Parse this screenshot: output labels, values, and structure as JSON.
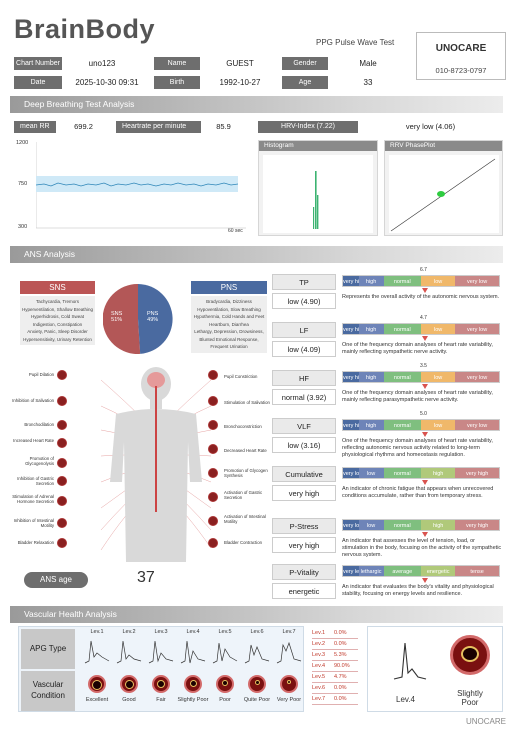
{
  "header": {
    "brand": "BrainBody",
    "subtitle": "PPG Pulse Wave Test",
    "company": "UNOCARE",
    "phone": "010-8723-0797"
  },
  "info": {
    "row1": [
      {
        "label": "Chart Number",
        "value": "uno123"
      },
      {
        "label": "Name",
        "value": "GUEST"
      },
      {
        "label": "Gender",
        "value": "Male"
      }
    ],
    "row2": [
      {
        "label": "Date",
        "value": "2025-10-30 09:31"
      },
      {
        "label": "Birth",
        "value": "1992-10-27"
      },
      {
        "label": "Age",
        "value": "33"
      }
    ]
  },
  "deep": {
    "title": "Deep Breathing Test Analysis",
    "mean_rr_label": "mean RR",
    "mean_rr": "699.2",
    "hr_label": "Heartrate per minute",
    "hr": "85.9",
    "y_ticks": [
      "1200",
      "750",
      "300"
    ],
    "x_unit": "60 sec",
    "hrv_label": "HRV-Index (7.22)",
    "hrv_value": "very low (4.06)",
    "histogram": "Histogram",
    "phaseplot": "RRV PhasePlot"
  },
  "ans": {
    "title": "ANS Analysis",
    "sns": "SNS",
    "pns": "PNS",
    "sns_pct": "SNS\n51%",
    "pns_pct": "PNS\n49%",
    "sns_list": [
      "Tachycardia, Tremors",
      "Hyperventilation, Shallow Breathing",
      "Hyperhidrosis, Cold Sweat",
      "Indigestion, Constipation",
      "Anxiety, Panic, Sleep Disorder",
      "Hypersensitivity, Urinary Retention"
    ],
    "pns_list": [
      "Bradycardia, Dizziness",
      "Hypoventilation, Slow Breathing",
      "Hypothermia, Cold Hands and Feet",
      "Heartburn, Diarrhea",
      "Lethargy, Depression, Drowsiness, Blunted Emotional Response, Frequent Urination"
    ],
    "left_organs": [
      "Pupil Dilation",
      "Inhibition of Salivation",
      "Bronchodilation",
      "Increased Heart Rate",
      "Promotion of Glycogenolysis",
      "Inhibition of Gastric Secretion",
      "Stimulation of Adrenal Hormone Secretion",
      "Inhibition of Intestinal Motility",
      "Bladder Relaxation"
    ],
    "right_organs": [
      "Pupil Constriction",
      "Stimulation of Salivation",
      "Bronchoconstriction",
      "Decreased Heart Rate",
      "Promotion of Glycogen Synthesis",
      "Activation of Gastric Secretion",
      "Activation of Intestinal Motility",
      "Bladder Contraction"
    ],
    "ans_age_label": "ANS age",
    "ans_age": "37"
  },
  "metrics": [
    {
      "key": "TP",
      "result": "low (4.90)",
      "marker": "6.7",
      "scale": [
        "very high",
        "high",
        "normal",
        "low",
        "very low"
      ],
      "desc": "Represents the overall activity of the autonomic nervous system."
    },
    {
      "key": "LF",
      "result": "low (4.09)",
      "marker": "4.7",
      "scale": [
        "very high",
        "high",
        "normal",
        "low",
        "very low"
      ],
      "desc": "One of the frequency domain analyses of heart rate variability, mainly reflecting sympathetic nerve activity."
    },
    {
      "key": "HF",
      "result": "normal (3.92)",
      "marker": "3.5",
      "scale": [
        "very high",
        "high",
        "normal",
        "low",
        "very low"
      ],
      "desc": "One of the frequency domain analyses of heart rate variability, mainly reflecting parasympathetic nerve activity."
    },
    {
      "key": "VLF",
      "result": "low (3.16)",
      "marker": "5.0",
      "scale": [
        "very high",
        "high",
        "normal",
        "low",
        "very low"
      ],
      "desc": "One of the frequency domain analyses of heart rate variability, reflecting autonomic nervous activity related to long-term physiological rhythms and homeostasis regulation."
    },
    {
      "key": "Cumulative Fatigue",
      "result": "very high",
      "marker": "",
      "scale": [
        "very low",
        "low",
        "normal",
        "high",
        "very high"
      ],
      "desc": "An indicator of chronic fatigue that appears when unrecovered conditions accumulate, rather than from temporary stress."
    },
    {
      "key": "P-Stress",
      "result": "very high",
      "marker": "",
      "scale": [
        "very low",
        "low",
        "normal",
        "high",
        "very high"
      ],
      "desc": "An indicator that assesses the level of tension, load, or stimulation in the body, focusing on the activity of the sympathetic nervous system."
    },
    {
      "key": "P-Vitality",
      "result": "energetic",
      "marker": "",
      "scale": [
        "very lethargic",
        "lethargic",
        "average",
        "energetic",
        "tense"
      ],
      "desc": "An indicator that evaluates the body's vitality and physiological stability, focusing on energy levels and resilience."
    }
  ],
  "vascular": {
    "title": "Vascular Health Analysis",
    "apg_label": "APG Type",
    "cond_label": "Vascular Condition",
    "levels": [
      "Lev.1",
      "Lev.2",
      "Lev.3",
      "Lev.4",
      "Lev.5",
      "Lev.6",
      "Lev.7"
    ],
    "conditions": [
      "Excellent",
      "Good",
      "Fair",
      "Slightly Poor",
      "Poor",
      "Quite Poor",
      "Very Poor"
    ],
    "table": [
      [
        "Lev.1",
        "0.0%"
      ],
      [
        "Lev.2",
        "0.0%"
      ],
      [
        "Lev.3",
        "5.3%"
      ],
      [
        "Lev.4",
        "90.0%"
      ],
      [
        "Lev.5",
        "4.7%"
      ],
      [
        "Lev.6",
        "0.0%"
      ],
      [
        "Lev.7",
        "0.0%"
      ]
    ],
    "result_level": "Lev.4",
    "result_cond": "Slightly\nPoor"
  },
  "footer": "UNOCARE",
  "chart_data": {
    "type": "line",
    "title": "",
    "xlabel": "",
    "ylabel": "",
    "ylim": [
      300,
      1200
    ],
    "x_unit": "60 sec",
    "note": "RR interval trace approx. 700"
  }
}
